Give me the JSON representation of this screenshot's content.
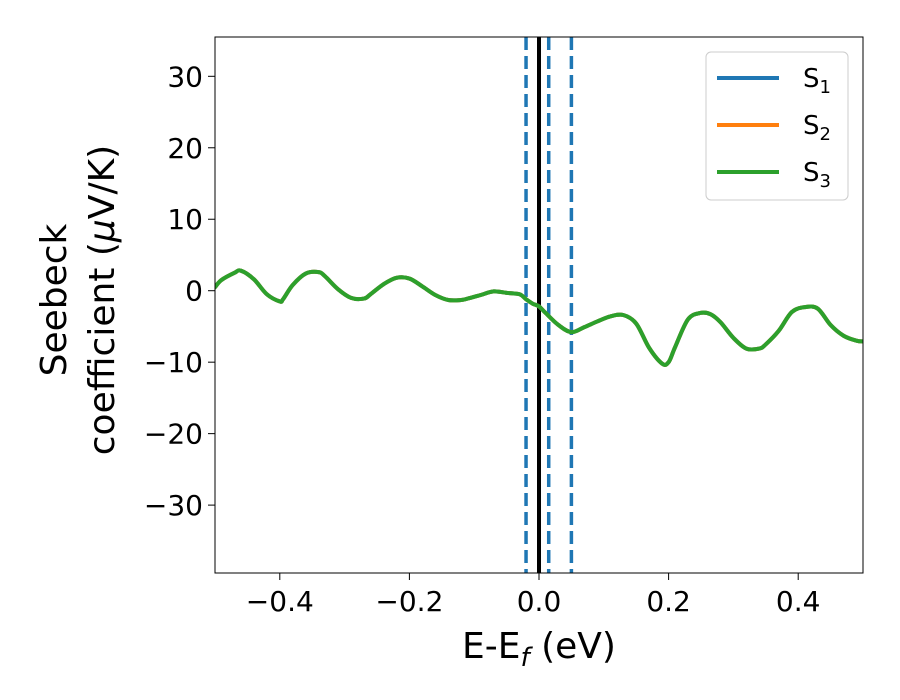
{
  "chart_data": {
    "type": "line",
    "xlabel": {
      "main": "E-E",
      "sub": "f",
      "unit": " (eV)"
    },
    "ylabel": {
      "line1": "Seebeck",
      "line2_pre": "coefficient  (",
      "mu": "μ",
      "line2_post": "V/K)"
    },
    "xlim": [
      -0.5,
      0.5
    ],
    "ylim": [
      -39.5,
      35.5
    ],
    "xticks": [
      -0.4,
      -0.2,
      0.0,
      0.2,
      0.4
    ],
    "xtick_labels": [
      "−0.4",
      "−0.2",
      "0.0",
      "0.2",
      "0.4"
    ],
    "yticks": [
      30,
      20,
      10,
      0,
      -10,
      -20,
      -30
    ],
    "ytick_labels": [
      "30",
      "20",
      "10",
      "0",
      "−10",
      "−20",
      "−30"
    ],
    "legend_position": "top-right",
    "series": [
      {
        "name": "S",
        "sub": "1",
        "color": "#1f77b4"
      },
      {
        "name": "S",
        "sub": "2",
        "color": "#ff7f0e"
      },
      {
        "name": "S",
        "sub": "3",
        "color": "#2ca02c"
      }
    ],
    "x": [
      -0.5,
      -0.49,
      -0.47,
      -0.46,
      -0.44,
      -0.42,
      -0.4,
      -0.395,
      -0.38,
      -0.36,
      -0.34,
      -0.33,
      -0.31,
      -0.29,
      -0.27,
      -0.26,
      -0.24,
      -0.22,
      -0.2,
      -0.18,
      -0.16,
      -0.14,
      -0.12,
      -0.11,
      -0.09,
      -0.07,
      -0.05,
      -0.03,
      -0.02,
      -0.01,
      0.0,
      0.01,
      0.03,
      0.05,
      0.07,
      0.09,
      0.11,
      0.13,
      0.15,
      0.17,
      0.19,
      0.2,
      0.21,
      0.23,
      0.25,
      0.265,
      0.28,
      0.3,
      0.32,
      0.34,
      0.35,
      0.37,
      0.39,
      0.41,
      0.43,
      0.45,
      0.47,
      0.49,
      0.5
    ],
    "y": [
      0.5,
      1.5,
      2.5,
      2.8,
      1.6,
      -0.5,
      -1.5,
      -1.2,
      0.8,
      2.4,
      2.6,
      2.0,
      0.2,
      -1.0,
      -1.1,
      -0.5,
      0.9,
      1.8,
      1.7,
      0.6,
      -0.6,
      -1.3,
      -1.3,
      -1.1,
      -0.6,
      -0.1,
      -0.3,
      -0.5,
      -1.2,
      -1.8,
      -2.2,
      -3.1,
      -4.8,
      -5.8,
      -5.1,
      -4.3,
      -3.6,
      -3.4,
      -4.6,
      -8.0,
      -10.2,
      -10.0,
      -7.9,
      -4.0,
      -3.1,
      -3.3,
      -4.4,
      -6.6,
      -8.1,
      -8.1,
      -7.5,
      -5.6,
      -3.0,
      -2.3,
      -2.5,
      -4.8,
      -6.3,
      -7.0,
      -7.1
    ],
    "vlines": [
      {
        "x": 0.0,
        "style": "solid",
        "color": "#000000"
      },
      {
        "x": -0.02,
        "style": "dashed",
        "color": "#1f77b4"
      },
      {
        "x": 0.015,
        "style": "dashed",
        "color": "#1f77b4"
      },
      {
        "x": 0.05,
        "style": "dashed",
        "color": "#1f77b4"
      }
    ]
  }
}
